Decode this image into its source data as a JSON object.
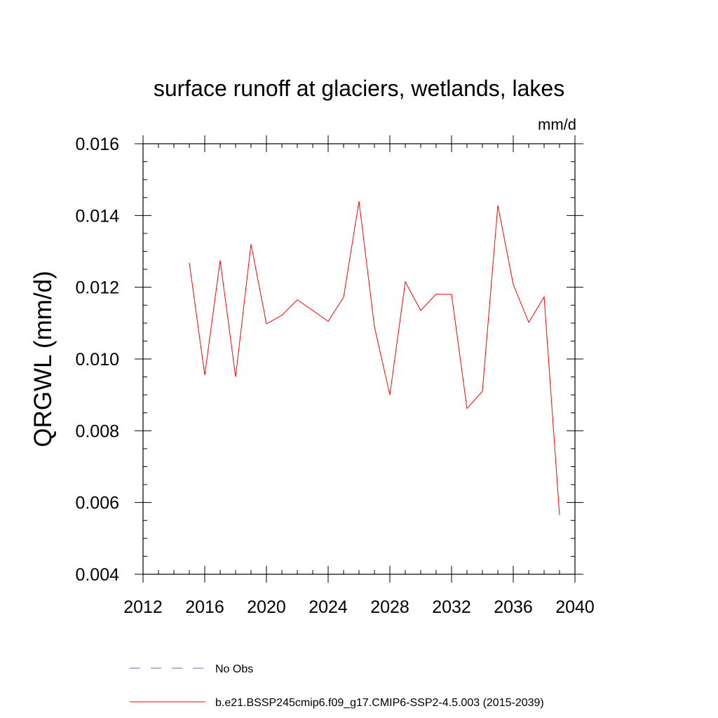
{
  "chart_data": {
    "type": "line",
    "title": "surface runoff at glaciers, wetlands, lakes",
    "units_label": "mm/d",
    "ylabel": "QRGWL  (mm/d)",
    "xlabel": "",
    "xlim": [
      2012,
      2040
    ],
    "ylim": [
      0.004,
      0.016
    ],
    "x_ticks": [
      2012,
      2016,
      2020,
      2024,
      2028,
      2032,
      2036,
      2040
    ],
    "x_tick_labels": [
      "2012",
      "2016",
      "2020",
      "2024",
      "2028",
      "2032",
      "2036",
      "2040"
    ],
    "y_ticks": [
      0.004,
      0.006,
      0.008,
      0.01,
      0.012,
      0.014,
      0.016
    ],
    "y_tick_labels": [
      "0.004",
      "0.006",
      "0.008",
      "0.010",
      "0.012",
      "0.014",
      "0.016"
    ],
    "x_minor_step": 1,
    "y_minor_step": 0.0005,
    "grid": false,
    "legend_position": "bottom",
    "series": [
      {
        "name": "b.e21.BSSP245cmip6.f09_g17.CMIP6-SSP2-4.5.003 (2015-2039)",
        "color": "#ff0000",
        "style": "solid",
        "x": [
          2015,
          2016,
          2017,
          2018,
          2019,
          2020,
          2021,
          2022,
          2023,
          2024,
          2025,
          2026,
          2027,
          2028,
          2029,
          2030,
          2031,
          2032,
          2033,
          2034,
          2035,
          2036,
          2037,
          2038,
          2039
        ],
        "values": [
          0.01268,
          0.00955,
          0.01275,
          0.0095,
          0.0132,
          0.01098,
          0.01122,
          0.01165,
          0.01135,
          0.01105,
          0.01172,
          0.0144,
          0.0109,
          0.009,
          0.01215,
          0.01135,
          0.01181,
          0.0118,
          0.00862,
          0.0091,
          0.01428,
          0.01208,
          0.01102,
          0.01173,
          0.00565
        ]
      }
    ],
    "legend": [
      {
        "label": "No Obs",
        "color": "#6a6aaa",
        "style": "dashed"
      },
      {
        "label": "b.e21.BSSP245cmip6.f09_g17.CMIP6-SSP2-4.5.003 (2015-2039)",
        "color": "#ff0000",
        "style": "solid"
      }
    ]
  }
}
